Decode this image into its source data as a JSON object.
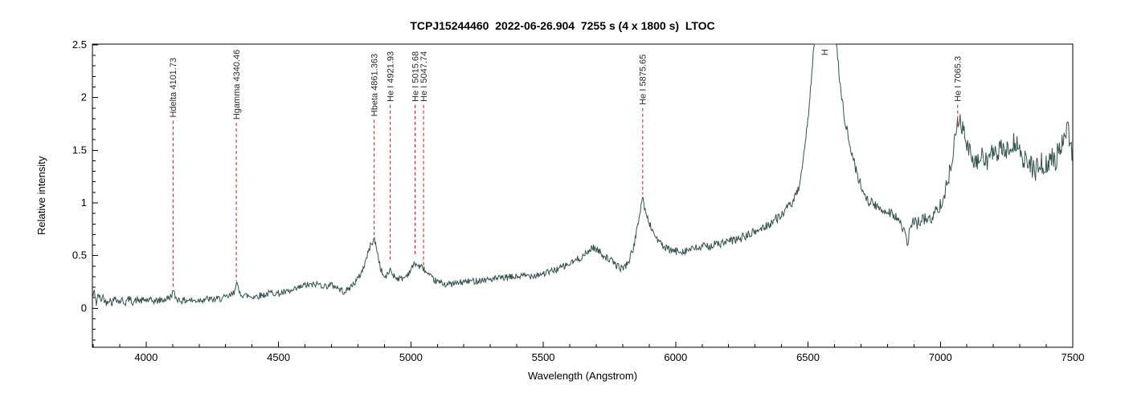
{
  "chart_data": {
    "type": "line",
    "title": "TCPJ15244460  2022-06-26.904  7255 s (4 x 1800 s)  LTOC",
    "xlabel": "Wavelength (Angstrom)",
    "ylabel": "Relative intensity",
    "xlim": [
      3797,
      7500
    ],
    "ylim": [
      -0.37,
      2.507
    ],
    "x_major_ticks": [
      4000,
      4500,
      5000,
      5500,
      6000,
      6500,
      7000,
      7500
    ],
    "x_minor_step": 100,
    "y_major_ticks": [
      0,
      0.5,
      1,
      1.5,
      2,
      2.5
    ],
    "y_minor_step": 0.1,
    "grid": false,
    "legend": null,
    "line_color": "#335250",
    "annotation_color": "#e01010",
    "axis_color": "#000000",
    "annotations": [
      {
        "label": "Hdelta 4101.73",
        "wavelength": 4101.73,
        "line_top": 1.78,
        "line_bottom": 0.19
      },
      {
        "label": "Hgamma 4340.46",
        "wavelength": 4340.46,
        "line_top": 1.76,
        "line_bottom": 0.26
      },
      {
        "label": "Hbeta 4861.363",
        "wavelength": 4861.363,
        "line_top": 1.79,
        "line_bottom": 0.67
      },
      {
        "label": "He I 4921.93",
        "wavelength": 4921.93,
        "line_top": 1.93,
        "line_bottom": 0.44
      },
      {
        "label": "He I 5015.68",
        "wavelength": 5015.68,
        "line_top": 1.93,
        "line_bottom": 0.5
      },
      {
        "label": "He I 5047.74",
        "wavelength": 5047.74,
        "line_top": 1.93,
        "line_bottom": 0.39
      },
      {
        "label": "He I 5875.65",
        "wavelength": 5875.65,
        "line_top": 1.9,
        "line_bottom": 1.08
      },
      {
        "label": "H",
        "wavelength": 6562.8,
        "line_top": null,
        "line_bottom": null,
        "label_value": 2.4,
        "note": "peak clipped at plot top"
      },
      {
        "label": "He I 7065.3",
        "wavelength": 7065.3,
        "line_top": 1.93,
        "line_bottom": 1.74
      }
    ],
    "noise_profile": [
      [
        3797,
        0.035
      ],
      [
        5000,
        0.03
      ],
      [
        5800,
        0.035
      ],
      [
        6400,
        0.045
      ],
      [
        6900,
        0.055
      ],
      [
        7150,
        0.095
      ],
      [
        7500,
        0.115
      ]
    ],
    "series": [
      {
        "name": "spectrum",
        "points": [
          [
            3797,
            0.1
          ],
          [
            3805,
            0.16
          ],
          [
            3812,
            0.04
          ],
          [
            3820,
            0.14
          ],
          [
            3828,
            0.07
          ],
          [
            3836,
            0.12
          ],
          [
            3848,
            0.05
          ],
          [
            3860,
            0.09
          ],
          [
            3872,
            0.05
          ],
          [
            3884,
            0.11
          ],
          [
            3896,
            0.06
          ],
          [
            3908,
            0.08
          ],
          [
            3920,
            0.05
          ],
          [
            3935,
            0.09
          ],
          [
            3950,
            0.06
          ],
          [
            3965,
            0.08
          ],
          [
            3980,
            0.07
          ],
          [
            4000,
            0.08
          ],
          [
            4020,
            0.07
          ],
          [
            4040,
            0.07
          ],
          [
            4060,
            0.08
          ],
          [
            4080,
            0.09
          ],
          [
            4092,
            0.11
          ],
          [
            4101.7,
            0.16
          ],
          [
            4112,
            0.1
          ],
          [
            4125,
            0.08
          ],
          [
            4140,
            0.07
          ],
          [
            4160,
            0.08
          ],
          [
            4180,
            0.07
          ],
          [
            4200,
            0.08
          ],
          [
            4225,
            0.09
          ],
          [
            4250,
            0.08
          ],
          [
            4275,
            0.09
          ],
          [
            4300,
            0.1
          ],
          [
            4320,
            0.12
          ],
          [
            4332,
            0.15
          ],
          [
            4340.5,
            0.26
          ],
          [
            4350,
            0.15
          ],
          [
            4365,
            0.13
          ],
          [
            4380,
            0.12
          ],
          [
            4400,
            0.11
          ],
          [
            4425,
            0.12
          ],
          [
            4450,
            0.13
          ],
          [
            4475,
            0.15
          ],
          [
            4500,
            0.14
          ],
          [
            4525,
            0.15
          ],
          [
            4550,
            0.16
          ],
          [
            4575,
            0.19
          ],
          [
            4600,
            0.22
          ],
          [
            4625,
            0.22
          ],
          [
            4650,
            0.23
          ],
          [
            4675,
            0.21
          ],
          [
            4700,
            0.22
          ],
          [
            4715,
            0.21
          ],
          [
            4730,
            0.18
          ],
          [
            4745,
            0.16
          ],
          [
            4760,
            0.17
          ],
          [
            4775,
            0.21
          ],
          [
            4790,
            0.25
          ],
          [
            4805,
            0.3
          ],
          [
            4820,
            0.38
          ],
          [
            4835,
            0.5
          ],
          [
            4848,
            0.6
          ],
          [
            4861.4,
            0.66
          ],
          [
            4872,
            0.55
          ],
          [
            4885,
            0.38
          ],
          [
            4900,
            0.29
          ],
          [
            4910,
            0.31
          ],
          [
            4921.9,
            0.37
          ],
          [
            4932,
            0.32
          ],
          [
            4945,
            0.29
          ],
          [
            4960,
            0.28
          ],
          [
            4975,
            0.29
          ],
          [
            4990,
            0.33
          ],
          [
            5003,
            0.38
          ],
          [
            5015.7,
            0.43
          ],
          [
            5028,
            0.4
          ],
          [
            5047.7,
            0.38
          ],
          [
            5060,
            0.33
          ],
          [
            5080,
            0.28
          ],
          [
            5100,
            0.25
          ],
          [
            5130,
            0.23
          ],
          [
            5160,
            0.23
          ],
          [
            5200,
            0.25
          ],
          [
            5240,
            0.26
          ],
          [
            5280,
            0.27
          ],
          [
            5320,
            0.28
          ],
          [
            5360,
            0.29
          ],
          [
            5400,
            0.3
          ],
          [
            5440,
            0.31
          ],
          [
            5480,
            0.32
          ],
          [
            5520,
            0.34
          ],
          [
            5560,
            0.38
          ],
          [
            5600,
            0.42
          ],
          [
            5640,
            0.48
          ],
          [
            5665,
            0.52
          ],
          [
            5684,
            0.58
          ],
          [
            5700,
            0.56
          ],
          [
            5715,
            0.53
          ],
          [
            5730,
            0.5
          ],
          [
            5745,
            0.47
          ],
          [
            5762,
            0.44
          ],
          [
            5780,
            0.4
          ],
          [
            5795,
            0.38
          ],
          [
            5810,
            0.4
          ],
          [
            5825,
            0.46
          ],
          [
            5840,
            0.57
          ],
          [
            5855,
            0.75
          ],
          [
            5865,
            0.92
          ],
          [
            5875.7,
            1.06
          ],
          [
            5886,
            0.9
          ],
          [
            5895,
            0.85
          ],
          [
            5905,
            0.78
          ],
          [
            5920,
            0.7
          ],
          [
            5940,
            0.62
          ],
          [
            5960,
            0.57
          ],
          [
            5980,
            0.55
          ],
          [
            6000,
            0.54
          ],
          [
            6040,
            0.55
          ],
          [
            6080,
            0.57
          ],
          [
            6120,
            0.59
          ],
          [
            6160,
            0.61
          ],
          [
            6200,
            0.63
          ],
          [
            6240,
            0.66
          ],
          [
            6280,
            0.7
          ],
          [
            6320,
            0.75
          ],
          [
            6360,
            0.81
          ],
          [
            6400,
            0.89
          ],
          [
            6430,
            0.97
          ],
          [
            6455,
            1.06
          ],
          [
            6475,
            1.25
          ],
          [
            6490,
            1.55
          ],
          [
            6505,
            1.95
          ],
          [
            6515,
            2.25
          ],
          [
            6525,
            2.6
          ],
          [
            6540,
            3.0
          ],
          [
            6565,
            3.2
          ],
          [
            6590,
            2.9
          ],
          [
            6605,
            2.55
          ],
          [
            6615,
            2.3
          ],
          [
            6625,
            2.05
          ],
          [
            6640,
            1.78
          ],
          [
            6655,
            1.58
          ],
          [
            6670,
            1.42
          ],
          [
            6685,
            1.28
          ],
          [
            6700,
            1.16
          ],
          [
            6715,
            1.08
          ],
          [
            6730,
            1.02
          ],
          [
            6745,
            0.99
          ],
          [
            6760,
            0.96
          ],
          [
            6775,
            0.94
          ],
          [
            6790,
            0.93
          ],
          [
            6805,
            0.92
          ],
          [
            6820,
            0.9
          ],
          [
            6835,
            0.86
          ],
          [
            6850,
            0.8
          ],
          [
            6862,
            0.72
          ],
          [
            6876,
            0.62
          ],
          [
            6886,
            0.76
          ],
          [
            6896,
            0.82
          ],
          [
            6910,
            0.8
          ],
          [
            6925,
            0.84
          ],
          [
            6940,
            0.85
          ],
          [
            6955,
            0.83
          ],
          [
            6970,
            0.87
          ],
          [
            6985,
            0.92
          ],
          [
            7000,
            1.0
          ],
          [
            7015,
            1.08
          ],
          [
            7030,
            1.22
          ],
          [
            7045,
            1.45
          ],
          [
            7058,
            1.68
          ],
          [
            7068,
            1.8
          ],
          [
            7080,
            1.74
          ],
          [
            7092,
            1.62
          ],
          [
            7105,
            1.52
          ],
          [
            7120,
            1.42
          ],
          [
            7135,
            1.36
          ],
          [
            7150,
            1.42
          ],
          [
            7165,
            1.45
          ],
          [
            7180,
            1.39
          ],
          [
            7195,
            1.48
          ],
          [
            7210,
            1.44
          ],
          [
            7225,
            1.5
          ],
          [
            7240,
            1.53
          ],
          [
            7255,
            1.47
          ],
          [
            7270,
            1.55
          ],
          [
            7285,
            1.58
          ],
          [
            7300,
            1.46
          ],
          [
            7315,
            1.42
          ],
          [
            7330,
            1.38
          ],
          [
            7345,
            1.34
          ],
          [
            7360,
            1.31
          ],
          [
            7375,
            1.38
          ],
          [
            7390,
            1.36
          ],
          [
            7405,
            1.34
          ],
          [
            7420,
            1.44
          ],
          [
            7435,
            1.4
          ],
          [
            7450,
            1.52
          ],
          [
            7465,
            1.6
          ],
          [
            7480,
            1.75
          ],
          [
            7490,
            1.6
          ],
          [
            7500,
            1.45
          ]
        ]
      }
    ]
  }
}
